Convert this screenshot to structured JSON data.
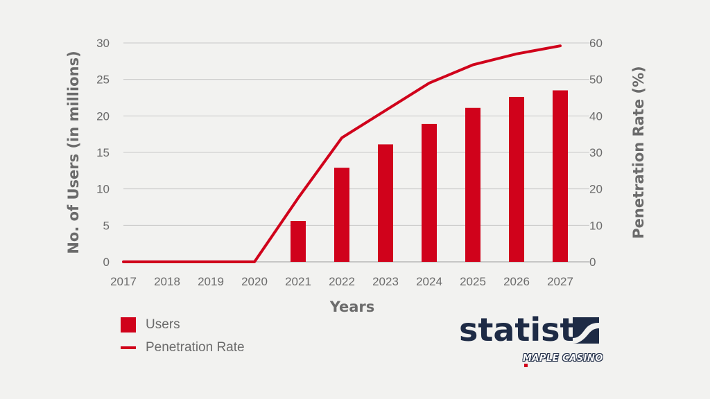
{
  "chart_data": {
    "type": "bar+line",
    "categories": [
      "2017",
      "2018",
      "2019",
      "2020",
      "2021",
      "2022",
      "2023",
      "2024",
      "2025",
      "2026",
      "2027"
    ],
    "series": [
      {
        "name": "Users",
        "type": "bar",
        "axis": "left",
        "values": [
          0,
          0,
          0,
          0,
          5.6,
          12.9,
          16.1,
          18.9,
          21.1,
          22.6,
          23.5
        ]
      },
      {
        "name": "Penetration Rate",
        "type": "line",
        "axis": "right",
        "values": [
          0,
          0,
          0,
          0,
          17.5,
          34,
          41.5,
          49,
          54,
          57,
          59.2
        ]
      }
    ],
    "xlabel": "Years",
    "ylabel": "No. of Users (in millions)",
    "y2label": "Penetration Rate (%)",
    "ylim": [
      0,
      30
    ],
    "y2lim": [
      0,
      60
    ],
    "yticks": [
      "0",
      "5",
      "10",
      "15",
      "20",
      "25",
      "30"
    ],
    "y2ticks": [
      "0",
      "10",
      "20",
      "30",
      "40",
      "50",
      "60"
    ],
    "grid": true,
    "legend_position": "bottom-left",
    "colors": {
      "bar": "#d0021b",
      "line": "#d0021b",
      "grid": "#c8c8c8",
      "text": "#6b6b6b"
    }
  },
  "legend": {
    "users_label": "Users",
    "penetration_label": "Penetration Rate"
  },
  "brand": {
    "name": "statista",
    "sub_logo": "MAPLE CASINO",
    "color": "#1e2b45"
  }
}
